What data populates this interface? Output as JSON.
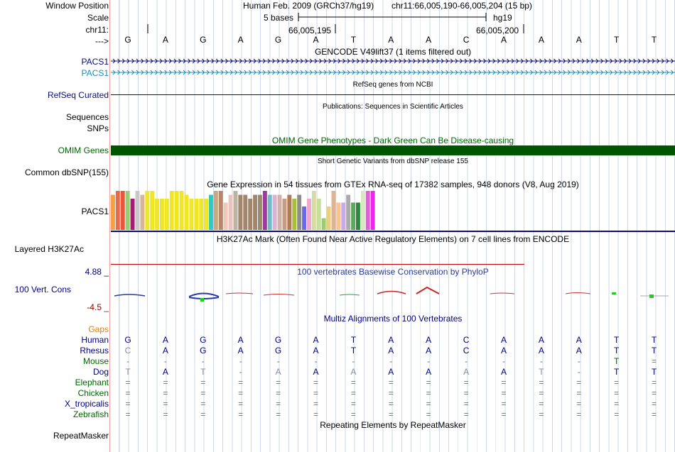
{
  "labels": {
    "window_position": "Window Position",
    "scale": "Scale",
    "chrom": "chr11:",
    "arrow": "--->",
    "pacs1_a": "PACS1",
    "pacs1_b": "PACS1",
    "refseq": "RefSeq Curated",
    "sequences": "Sequences",
    "snps": "SNPs",
    "omim": "OMIM Genes",
    "common_dbsnp": "Common dbSNP(155)",
    "gtex_gene": "PACS1",
    "h3k27ac": "Layered H3K27Ac",
    "vert_cons": "100 Vert. Cons",
    "ymax": "4.88 _",
    "ymin": "-4.5 _",
    "gaps": "Gaps",
    "repeatmasker": "RepeatMasker"
  },
  "header": {
    "assembly": "Human Feb. 2009 (GRCh37/hg19)",
    "position": "chr11:66,005,190-66,005,204 (15 bp)",
    "scale_text": "5 bases",
    "db": "hg19",
    "coord1": "66,005,195",
    "coord2": "66,005,200"
  },
  "bases": [
    "G",
    "A",
    "G",
    "A",
    "G",
    "A",
    "T",
    "A",
    "A",
    "C",
    "A",
    "A",
    "A",
    "T",
    "T"
  ],
  "track_titles": {
    "gencode": "GENCODE V49lift37 (1 items filtered out)",
    "refseq": "RefSeq genes from NCBI",
    "publications": "Publications: Sequences in Scientific Articles",
    "omim": "OMIM Gene Phenotypes - Dark Green Can Be Disease-causing",
    "dbsnp": "Short Genetic Variants from dbSNP release 155",
    "gtex": "Gene Expression in 54 tissues from GTEx RNA-seq of 17382 samples, 948 donors (V8, Aug 2019)",
    "h3k27ac": "H3K27Ac Mark (Often Found Near Active Regulatory Elements) on 7 cell lines from ENCODE",
    "phylop": "100 vertebrates Basewise Conservation by PhyloP",
    "multiz": "Multiz Alignments of 100 Vertebrates",
    "repeatmasker": "Repeating Elements by RepeatMasker"
  },
  "species": [
    {
      "name": "Human",
      "color": "#000080",
      "seq": [
        "G",
        "A",
        "G",
        "A",
        "G",
        "A",
        "T",
        "A",
        "A",
        "C",
        "A",
        "A",
        "A",
        "T",
        "T"
      ]
    },
    {
      "name": "Rhesus",
      "color": "#000080",
      "seq": [
        "C",
        "A",
        "G",
        "A",
        "G",
        "A",
        "T",
        "A",
        "A",
        "C",
        "A",
        "A",
        "A",
        "T",
        "T"
      ]
    },
    {
      "name": "Mouse",
      "color": "#006400",
      "seq": [
        "-",
        "-",
        "-",
        "-",
        "-",
        "-",
        "-",
        "-",
        "-",
        "-",
        "-",
        "-",
        "-",
        "T",
        "="
      ]
    },
    {
      "name": "Dog",
      "color": "#000080",
      "seq": [
        "T",
        "A",
        "T",
        "-",
        "A",
        "A",
        "A",
        "A",
        "A",
        "A",
        "A",
        "T",
        "-",
        "T",
        "T"
      ]
    },
    {
      "name": "Elephant",
      "color": "#006400",
      "seq": [
        "=",
        "=",
        "=",
        "=",
        "=",
        "=",
        "=",
        "=",
        "=",
        "=",
        "=",
        "=",
        "=",
        "=",
        "="
      ]
    },
    {
      "name": "Chicken",
      "color": "#006400",
      "seq": [
        "=",
        "=",
        "=",
        "=",
        "=",
        "=",
        "=",
        "=",
        "=",
        "=",
        "=",
        "=",
        "=",
        "=",
        "="
      ]
    },
    {
      "name": "X_tropicalis",
      "color": "#000080",
      "seq": [
        "=",
        "=",
        "=",
        "=",
        "=",
        "=",
        "=",
        "=",
        "=",
        "=",
        "=",
        "=",
        "=",
        "=",
        "="
      ]
    },
    {
      "name": "Zebrafish",
      "color": "#006400",
      "seq": [
        "=",
        "=",
        "=",
        "=",
        "=",
        "=",
        "=",
        "=",
        "=",
        "=",
        "=",
        "=",
        "=",
        "=",
        "="
      ]
    }
  ],
  "colors": {
    "gene_dark": "#0c0c78",
    "gene_light": "#1a8fb5",
    "omim_bar": "#005500",
    "gaps_label": "#e08000",
    "phylop_label": "#000080",
    "ymin_color": "#8b0000",
    "h3k27ac_line": "#cc0000"
  },
  "chart_data": {
    "type": "bar",
    "title": "Gene Expression in 54 tissues from GTEx RNA-seq of 17382 samples, 948 donors (V8, Aug 2019)",
    "ylim": [
      0,
      10
    ],
    "values": [
      9,
      10,
      10,
      10,
      8,
      10,
      9,
      10,
      10,
      8,
      8,
      8,
      10,
      10,
      10,
      9,
      8,
      8,
      8,
      8,
      9,
      10,
      10,
      7,
      9,
      10,
      9,
      9,
      8,
      9,
      9,
      10,
      9,
      9,
      9,
      8,
      9,
      8,
      9,
      6,
      8,
      10,
      8,
      3,
      6,
      10,
      7,
      7,
      9,
      7,
      7,
      10,
      10,
      10
    ],
    "colors": [
      "#f4a047",
      "#e96a4a",
      "#e9563e",
      "#9acd70",
      "#a51c74",
      "#c8c8c8",
      "#d9b49b",
      "#f0e628",
      "#f0e628",
      "#f0e628",
      "#f0e628",
      "#f0e628",
      "#f0e628",
      "#f0e628",
      "#f0e628",
      "#f0e628",
      "#f0e628",
      "#f0e628",
      "#f0e628",
      "#f0e628",
      "#2fc9c0",
      "#c7a87f",
      "#b8866b",
      "#f2c7b5",
      "#e8c3c0",
      "#bdb3a1",
      "#a1866d",
      "#a1866d",
      "#a1866d",
      "#a1866d",
      "#9b8b6a",
      "#9b3ba1",
      "#6ebdcc",
      "#d9b2d4",
      "#d3b1a5",
      "#c49e84",
      "#b37b55",
      "#a8bf3b",
      "#8e8e8e",
      "#6a6ae8",
      "#f2a6c9",
      "#d9d9a0",
      "#c6df9a",
      "#9bcf6c",
      "#e8d07e",
      "#e2b38f",
      "#f7c58e",
      "#c9a9e8",
      "#ababab",
      "#5aab5a",
      "#2b8a3d",
      "#d8e8c0",
      "#e85ad8",
      "#e82ae8"
    ]
  }
}
